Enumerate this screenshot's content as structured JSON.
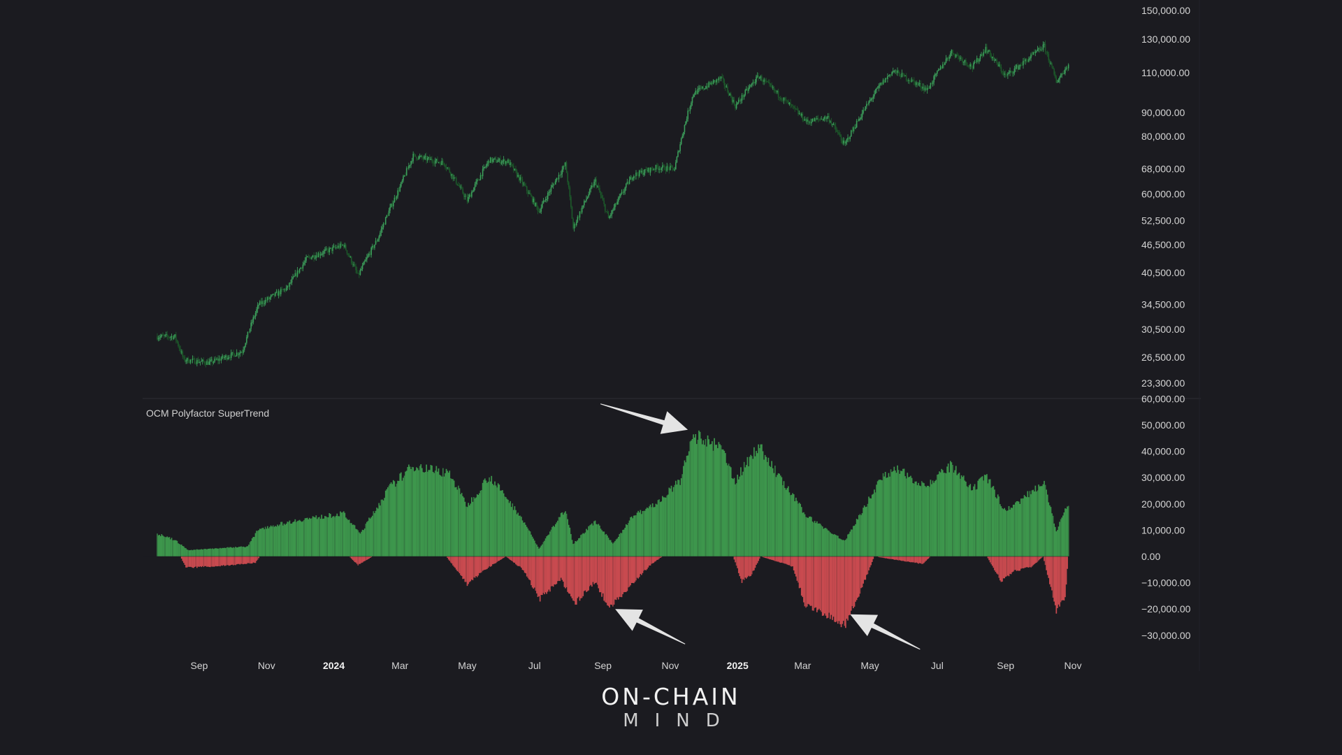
{
  "chart_data": [
    {
      "type": "candlestick",
      "scale": "log",
      "y_ticks": [
        "150,000.00",
        "130,000.00",
        "110,000.00",
        "90,000.00",
        "80,000.00",
        "68,000.00",
        "60,000.00",
        "52,500.00",
        "46,500.00",
        "40,500.00",
        "34,500.00",
        "30,500.00",
        "26,500.00",
        "23,300.00"
      ],
      "y_tick_values": [
        150000,
        130000,
        110000,
        90000,
        80000,
        68000,
        60000,
        52500,
        46500,
        40500,
        34500,
        30500,
        26500,
        23300
      ],
      "ylim": [
        22500,
        152000
      ],
      "x_range": [
        "2023-07-25",
        "2025-10-28"
      ],
      "colors": {
        "up": "#3c9e5b",
        "down": "#1c5a2a"
      },
      "price_path": [
        {
          "date": "2023-07-25",
          "close": 29400
        },
        {
          "date": "2023-08-10",
          "close": 29400
        },
        {
          "date": "2023-08-18",
          "close": 26200
        },
        {
          "date": "2023-09-10",
          "close": 25800
        },
        {
          "date": "2023-10-10",
          "close": 27300
        },
        {
          "date": "2023-10-25",
          "close": 34500
        },
        {
          "date": "2023-11-20",
          "close": 37500
        },
        {
          "date": "2023-12-08",
          "close": 43500
        },
        {
          "date": "2024-01-10",
          "close": 46500
        },
        {
          "date": "2024-01-23",
          "close": 39800
        },
        {
          "date": "2024-02-10",
          "close": 48000
        },
        {
          "date": "2024-03-01",
          "close": 62000
        },
        {
          "date": "2024-03-13",
          "close": 72500
        },
        {
          "date": "2024-04-10",
          "close": 70000
        },
        {
          "date": "2024-05-01",
          "close": 58000
        },
        {
          "date": "2024-05-21",
          "close": 71000
        },
        {
          "date": "2024-06-07",
          "close": 70500
        },
        {
          "date": "2024-07-05",
          "close": 55000
        },
        {
          "date": "2024-07-29",
          "close": 69500
        },
        {
          "date": "2024-08-05",
          "close": 50500
        },
        {
          "date": "2024-08-25",
          "close": 64000
        },
        {
          "date": "2024-09-06",
          "close": 53000
        },
        {
          "date": "2024-09-28",
          "close": 65800
        },
        {
          "date": "2024-10-20",
          "close": 68500
        },
        {
          "date": "2024-11-05",
          "close": 68000
        },
        {
          "date": "2024-11-22",
          "close": 99000
        },
        {
          "date": "2024-12-17",
          "close": 107000
        },
        {
          "date": "2024-12-30",
          "close": 93000
        },
        {
          "date": "2025-01-20",
          "close": 108000
        },
        {
          "date": "2025-02-10",
          "close": 97000
        },
        {
          "date": "2025-03-05",
          "close": 86000
        },
        {
          "date": "2025-03-24",
          "close": 88000
        },
        {
          "date": "2025-04-08",
          "close": 76500
        },
        {
          "date": "2025-05-10",
          "close": 103000
        },
        {
          "date": "2025-05-22",
          "close": 111000
        },
        {
          "date": "2025-06-22",
          "close": 101000
        },
        {
          "date": "2025-07-14",
          "close": 122000
        },
        {
          "date": "2025-08-02",
          "close": 113000
        },
        {
          "date": "2025-08-14",
          "close": 124000
        },
        {
          "date": "2025-09-01",
          "close": 108000
        },
        {
          "date": "2025-09-20",
          "close": 117000
        },
        {
          "date": "2025-10-06",
          "close": 125500
        },
        {
          "date": "2025-10-17",
          "close": 105000
        },
        {
          "date": "2025-10-28",
          "close": 114500
        }
      ]
    },
    {
      "type": "area",
      "title": "OCM Polyfactor SuperTrend",
      "y_ticks": [
        "60,000.00",
        "50,000.00",
        "40,000.00",
        "30,000.00",
        "20,000.00",
        "10,000.00",
        "0.00",
        "−10,000.00",
        "−20,000.00",
        "−30,000.00"
      ],
      "y_tick_values": [
        60000,
        50000,
        40000,
        30000,
        20000,
        10000,
        0,
        -10000,
        -20000,
        -30000
      ],
      "ylim": [
        -33000,
        60000
      ],
      "colors": {
        "positive": "#3f9d4f",
        "negative": "#d24d52"
      },
      "positive_series": [
        {
          "date": "2023-07-25",
          "value": 9000
        },
        {
          "date": "2023-08-10",
          "value": 6500
        },
        {
          "date": "2023-08-22",
          "value": 2500
        },
        {
          "date": "2023-10-15",
          "value": 4000
        },
        {
          "date": "2023-10-25",
          "value": 11000
        },
        {
          "date": "2023-12-01",
          "value": 14500
        },
        {
          "date": "2024-01-10",
          "value": 17000
        },
        {
          "date": "2024-01-25",
          "value": 9000
        },
        {
          "date": "2024-02-20",
          "value": 27000
        },
        {
          "date": "2024-03-13",
          "value": 36000
        },
        {
          "date": "2024-04-15",
          "value": 33000
        },
        {
          "date": "2024-05-01",
          "value": 20000
        },
        {
          "date": "2024-05-21",
          "value": 32000
        },
        {
          "date": "2024-06-20",
          "value": 15000
        },
        {
          "date": "2024-07-05",
          "value": 3000
        },
        {
          "date": "2024-07-29",
          "value": 19000
        },
        {
          "date": "2024-08-05",
          "value": 5000
        },
        {
          "date": "2024-08-25",
          "value": 14000
        },
        {
          "date": "2024-09-10",
          "value": 5000
        },
        {
          "date": "2024-09-28",
          "value": 16000
        },
        {
          "date": "2024-10-20",
          "value": 21000
        },
        {
          "date": "2024-11-10",
          "value": 30000
        },
        {
          "date": "2024-11-22",
          "value": 48000
        },
        {
          "date": "2024-12-17",
          "value": 43000
        },
        {
          "date": "2024-12-30",
          "value": 30000
        },
        {
          "date": "2025-01-20",
          "value": 44000
        },
        {
          "date": "2025-02-10",
          "value": 30000
        },
        {
          "date": "2025-03-05",
          "value": 16000
        },
        {
          "date": "2025-04-08",
          "value": 6000
        },
        {
          "date": "2025-05-10",
          "value": 30000
        },
        {
          "date": "2025-05-22",
          "value": 35000
        },
        {
          "date": "2025-06-22",
          "value": 28000
        },
        {
          "date": "2025-07-14",
          "value": 36000
        },
        {
          "date": "2025-08-02",
          "value": 26000
        },
        {
          "date": "2025-08-14",
          "value": 32000
        },
        {
          "date": "2025-09-01",
          "value": 18000
        },
        {
          "date": "2025-09-20",
          "value": 24000
        },
        {
          "date": "2025-10-06",
          "value": 30000
        },
        {
          "date": "2025-10-17",
          "value": 10000
        },
        {
          "date": "2025-10-28",
          "value": 21000
        }
      ],
      "negative_series": [
        {
          "date": "2023-07-25",
          "value": 0
        },
        {
          "date": "2023-08-15",
          "value": 0
        },
        {
          "date": "2023-08-20",
          "value": -4500
        },
        {
          "date": "2023-09-20",
          "value": -3800
        },
        {
          "date": "2023-10-22",
          "value": -2500
        },
        {
          "date": "2023-10-26",
          "value": 0
        },
        {
          "date": "2024-01-15",
          "value": 0
        },
        {
          "date": "2024-01-23",
          "value": -3500
        },
        {
          "date": "2024-02-05",
          "value": 0
        },
        {
          "date": "2024-04-12",
          "value": 0
        },
        {
          "date": "2024-05-01",
          "value": -11000
        },
        {
          "date": "2024-05-18",
          "value": -5000
        },
        {
          "date": "2024-06-05",
          "value": 0
        },
        {
          "date": "2024-06-20",
          "value": -5000
        },
        {
          "date": "2024-07-06",
          "value": -17000
        },
        {
          "date": "2024-07-25",
          "value": -9000
        },
        {
          "date": "2024-08-06",
          "value": -19000
        },
        {
          "date": "2024-08-25",
          "value": -10000
        },
        {
          "date": "2024-09-07",
          "value": -21000
        },
        {
          "date": "2024-09-25",
          "value": -12000
        },
        {
          "date": "2024-10-15",
          "value": -3000
        },
        {
          "date": "2024-10-25",
          "value": 0
        },
        {
          "date": "2024-12-28",
          "value": 0
        },
        {
          "date": "2025-01-05",
          "value": -10000
        },
        {
          "date": "2025-01-14",
          "value": -7000
        },
        {
          "date": "2025-01-22",
          "value": 0
        },
        {
          "date": "2025-02-20",
          "value": -4000
        },
        {
          "date": "2025-03-04",
          "value": -20000
        },
        {
          "date": "2025-03-20",
          "value": -23000
        },
        {
          "date": "2025-04-08",
          "value": -28000
        },
        {
          "date": "2025-04-25",
          "value": -11000
        },
        {
          "date": "2025-05-05",
          "value": 0
        },
        {
          "date": "2025-06-18",
          "value": -3000
        },
        {
          "date": "2025-06-25",
          "value": 0
        },
        {
          "date": "2025-08-15",
          "value": 0
        },
        {
          "date": "2025-08-28",
          "value": -10000
        },
        {
          "date": "2025-09-08",
          "value": -6000
        },
        {
          "date": "2025-09-25",
          "value": -4000
        },
        {
          "date": "2025-10-05",
          "value": 0
        },
        {
          "date": "2025-10-17",
          "value": -22000
        },
        {
          "date": "2025-10-25",
          "value": -16000
        },
        {
          "date": "2025-10-28",
          "value": 0
        }
      ],
      "annotations": [
        {
          "type": "arrow",
          "target_date": "2024-11-22",
          "target_value": 49000
        },
        {
          "type": "arrow",
          "target_date": "2024-09-07",
          "target_value": -20000
        },
        {
          "type": "arrow",
          "target_date": "2025-04-08",
          "target_value": -22000
        }
      ]
    }
  ],
  "x_axis": {
    "labels": [
      {
        "text": "Sep",
        "date": "2023-09-01",
        "year": false
      },
      {
        "text": "Nov",
        "date": "2023-11-01",
        "year": false
      },
      {
        "text": "2024",
        "date": "2024-01-01",
        "year": true
      },
      {
        "text": "Mar",
        "date": "2024-03-01",
        "year": false
      },
      {
        "text": "May",
        "date": "2024-05-01",
        "year": false
      },
      {
        "text": "Jul",
        "date": "2024-07-01",
        "year": false
      },
      {
        "text": "Sep",
        "date": "2024-09-01",
        "year": false
      },
      {
        "text": "Nov",
        "date": "2024-11-01",
        "year": false
      },
      {
        "text": "2025",
        "date": "2025-01-01",
        "year": true
      },
      {
        "text": "Mar",
        "date": "2025-03-01",
        "year": false
      },
      {
        "text": "May",
        "date": "2025-05-01",
        "year": false
      },
      {
        "text": "Jul",
        "date": "2025-07-01",
        "year": false
      },
      {
        "text": "Sep",
        "date": "2025-09-01",
        "year": false
      },
      {
        "text": "Nov",
        "date": "2025-11-01",
        "year": false
      }
    ]
  },
  "logo": {
    "line1": "ON-CHAIN",
    "line2": "MIND"
  }
}
